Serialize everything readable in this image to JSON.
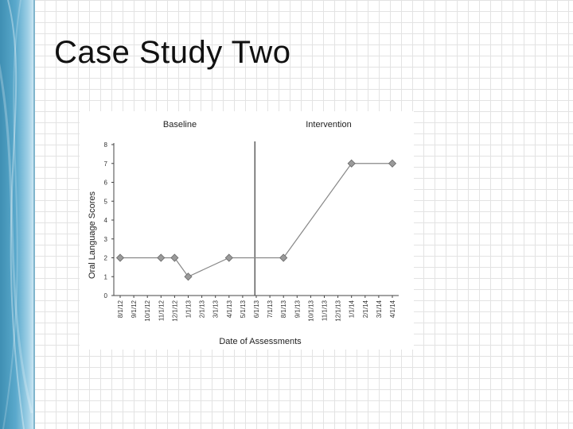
{
  "slide": {
    "title": "Case Study Two"
  },
  "colors": {
    "accent": "#4a9cc2",
    "line": "#888888",
    "marker": "#9a9a9a",
    "phase_line": "#555555"
  },
  "chart_data": {
    "type": "line",
    "title": "",
    "xlabel": "Date of Assessments",
    "ylabel": "Oral Language Scores",
    "ylim": [
      0,
      8
    ],
    "yticks": [
      "0",
      "1",
      "2",
      "3",
      "4",
      "5",
      "6",
      "7",
      "8"
    ],
    "categories": [
      "8/1/12",
      "9/1/12",
      "10/1/12",
      "11/1/12",
      "12/1/12",
      "1/1/13",
      "2/1/13",
      "3/1/13",
      "4/1/13",
      "5/1/13",
      "6/1/13",
      "7/1/13",
      "8/1/13",
      "9/1/13",
      "10/1/13",
      "11/1/13",
      "12/1/13",
      "1/1/14",
      "2/1/14",
      "3/1/14",
      "4/1/14"
    ],
    "phases": [
      "Baseline",
      "Intervention"
    ],
    "phase_change_after": "5/1/13",
    "series": [
      {
        "values": [
          2,
          null,
          null,
          2,
          2,
          1,
          null,
          null,
          2,
          null,
          null,
          null,
          2,
          null,
          null,
          null,
          null,
          7,
          null,
          null,
          7
        ]
      }
    ],
    "grid": false,
    "markers": "diamond"
  }
}
